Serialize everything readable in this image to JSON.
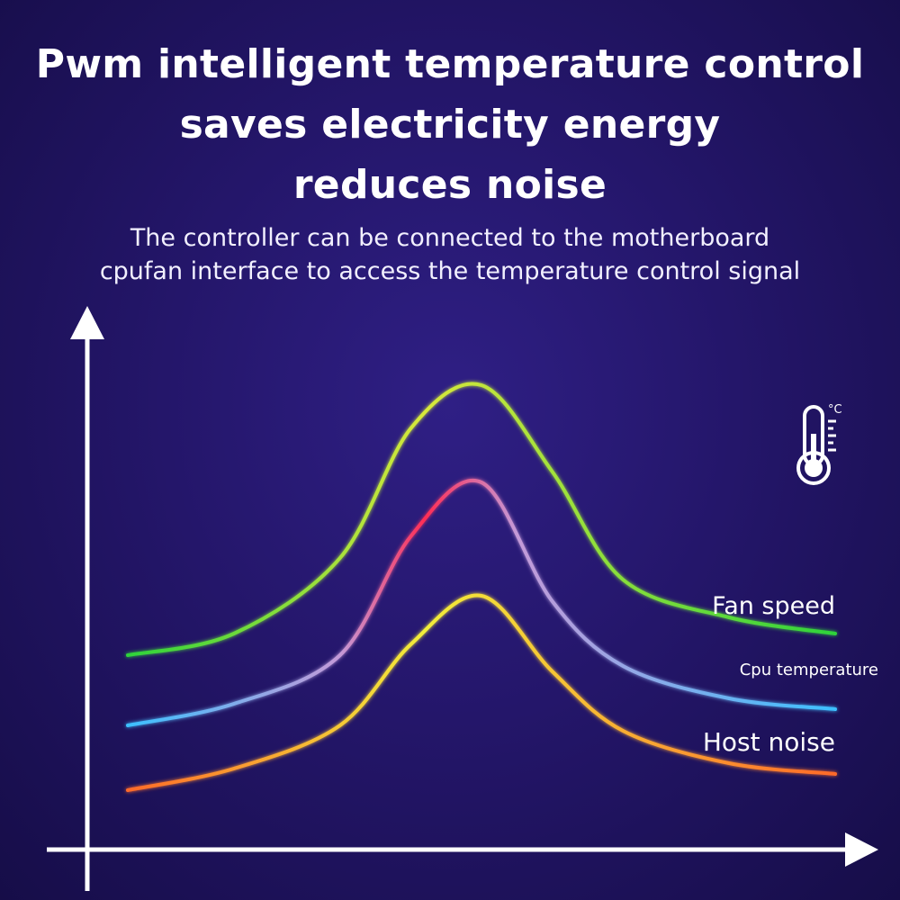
{
  "heading": {
    "title_lines": [
      "Pwm intelligent temperature control",
      "saves electricity energy",
      "reduces noise"
    ],
    "subtitle_lines": [
      "The controller can be connected to the motherboard",
      "cpufan interface to access the temperature control signal"
    ]
  },
  "icons": {
    "thermometer": "thermometer-icon",
    "unit_label": "°C"
  },
  "chart_data": {
    "type": "line",
    "title": "",
    "xlabel": "",
    "ylabel": "",
    "grid": false,
    "ticks": false,
    "legend": "inline-right",
    "series": [
      {
        "name": "Fan speed",
        "colors": [
          "#2ed33a",
          "#d8e83a",
          "#2ed33a"
        ],
        "x": [
          0,
          0.15,
          0.3,
          0.4,
          0.5,
          0.6,
          0.7,
          0.85,
          1.0
        ],
        "values": [
          0.36,
          0.4,
          0.54,
          0.78,
          0.86,
          0.7,
          0.5,
          0.43,
          0.4
        ]
      },
      {
        "name": "Cpu temperature",
        "colors": [
          "#3cc0ff",
          "#c49ad8",
          "#ff2d55",
          "#c49ad8",
          "#3cc0ff"
        ],
        "x": [
          0,
          0.15,
          0.3,
          0.4,
          0.5,
          0.6,
          0.7,
          0.85,
          1.0
        ],
        "values": [
          0.23,
          0.27,
          0.36,
          0.58,
          0.68,
          0.46,
          0.34,
          0.28,
          0.26
        ]
      },
      {
        "name": "Host noise",
        "colors": [
          "#ff6a2a",
          "#f2ee3a",
          "#ff6a2a"
        ],
        "x": [
          0,
          0.15,
          0.3,
          0.4,
          0.5,
          0.6,
          0.7,
          0.85,
          1.0
        ],
        "values": [
          0.11,
          0.15,
          0.23,
          0.38,
          0.47,
          0.33,
          0.22,
          0.16,
          0.14
        ]
      }
    ]
  }
}
